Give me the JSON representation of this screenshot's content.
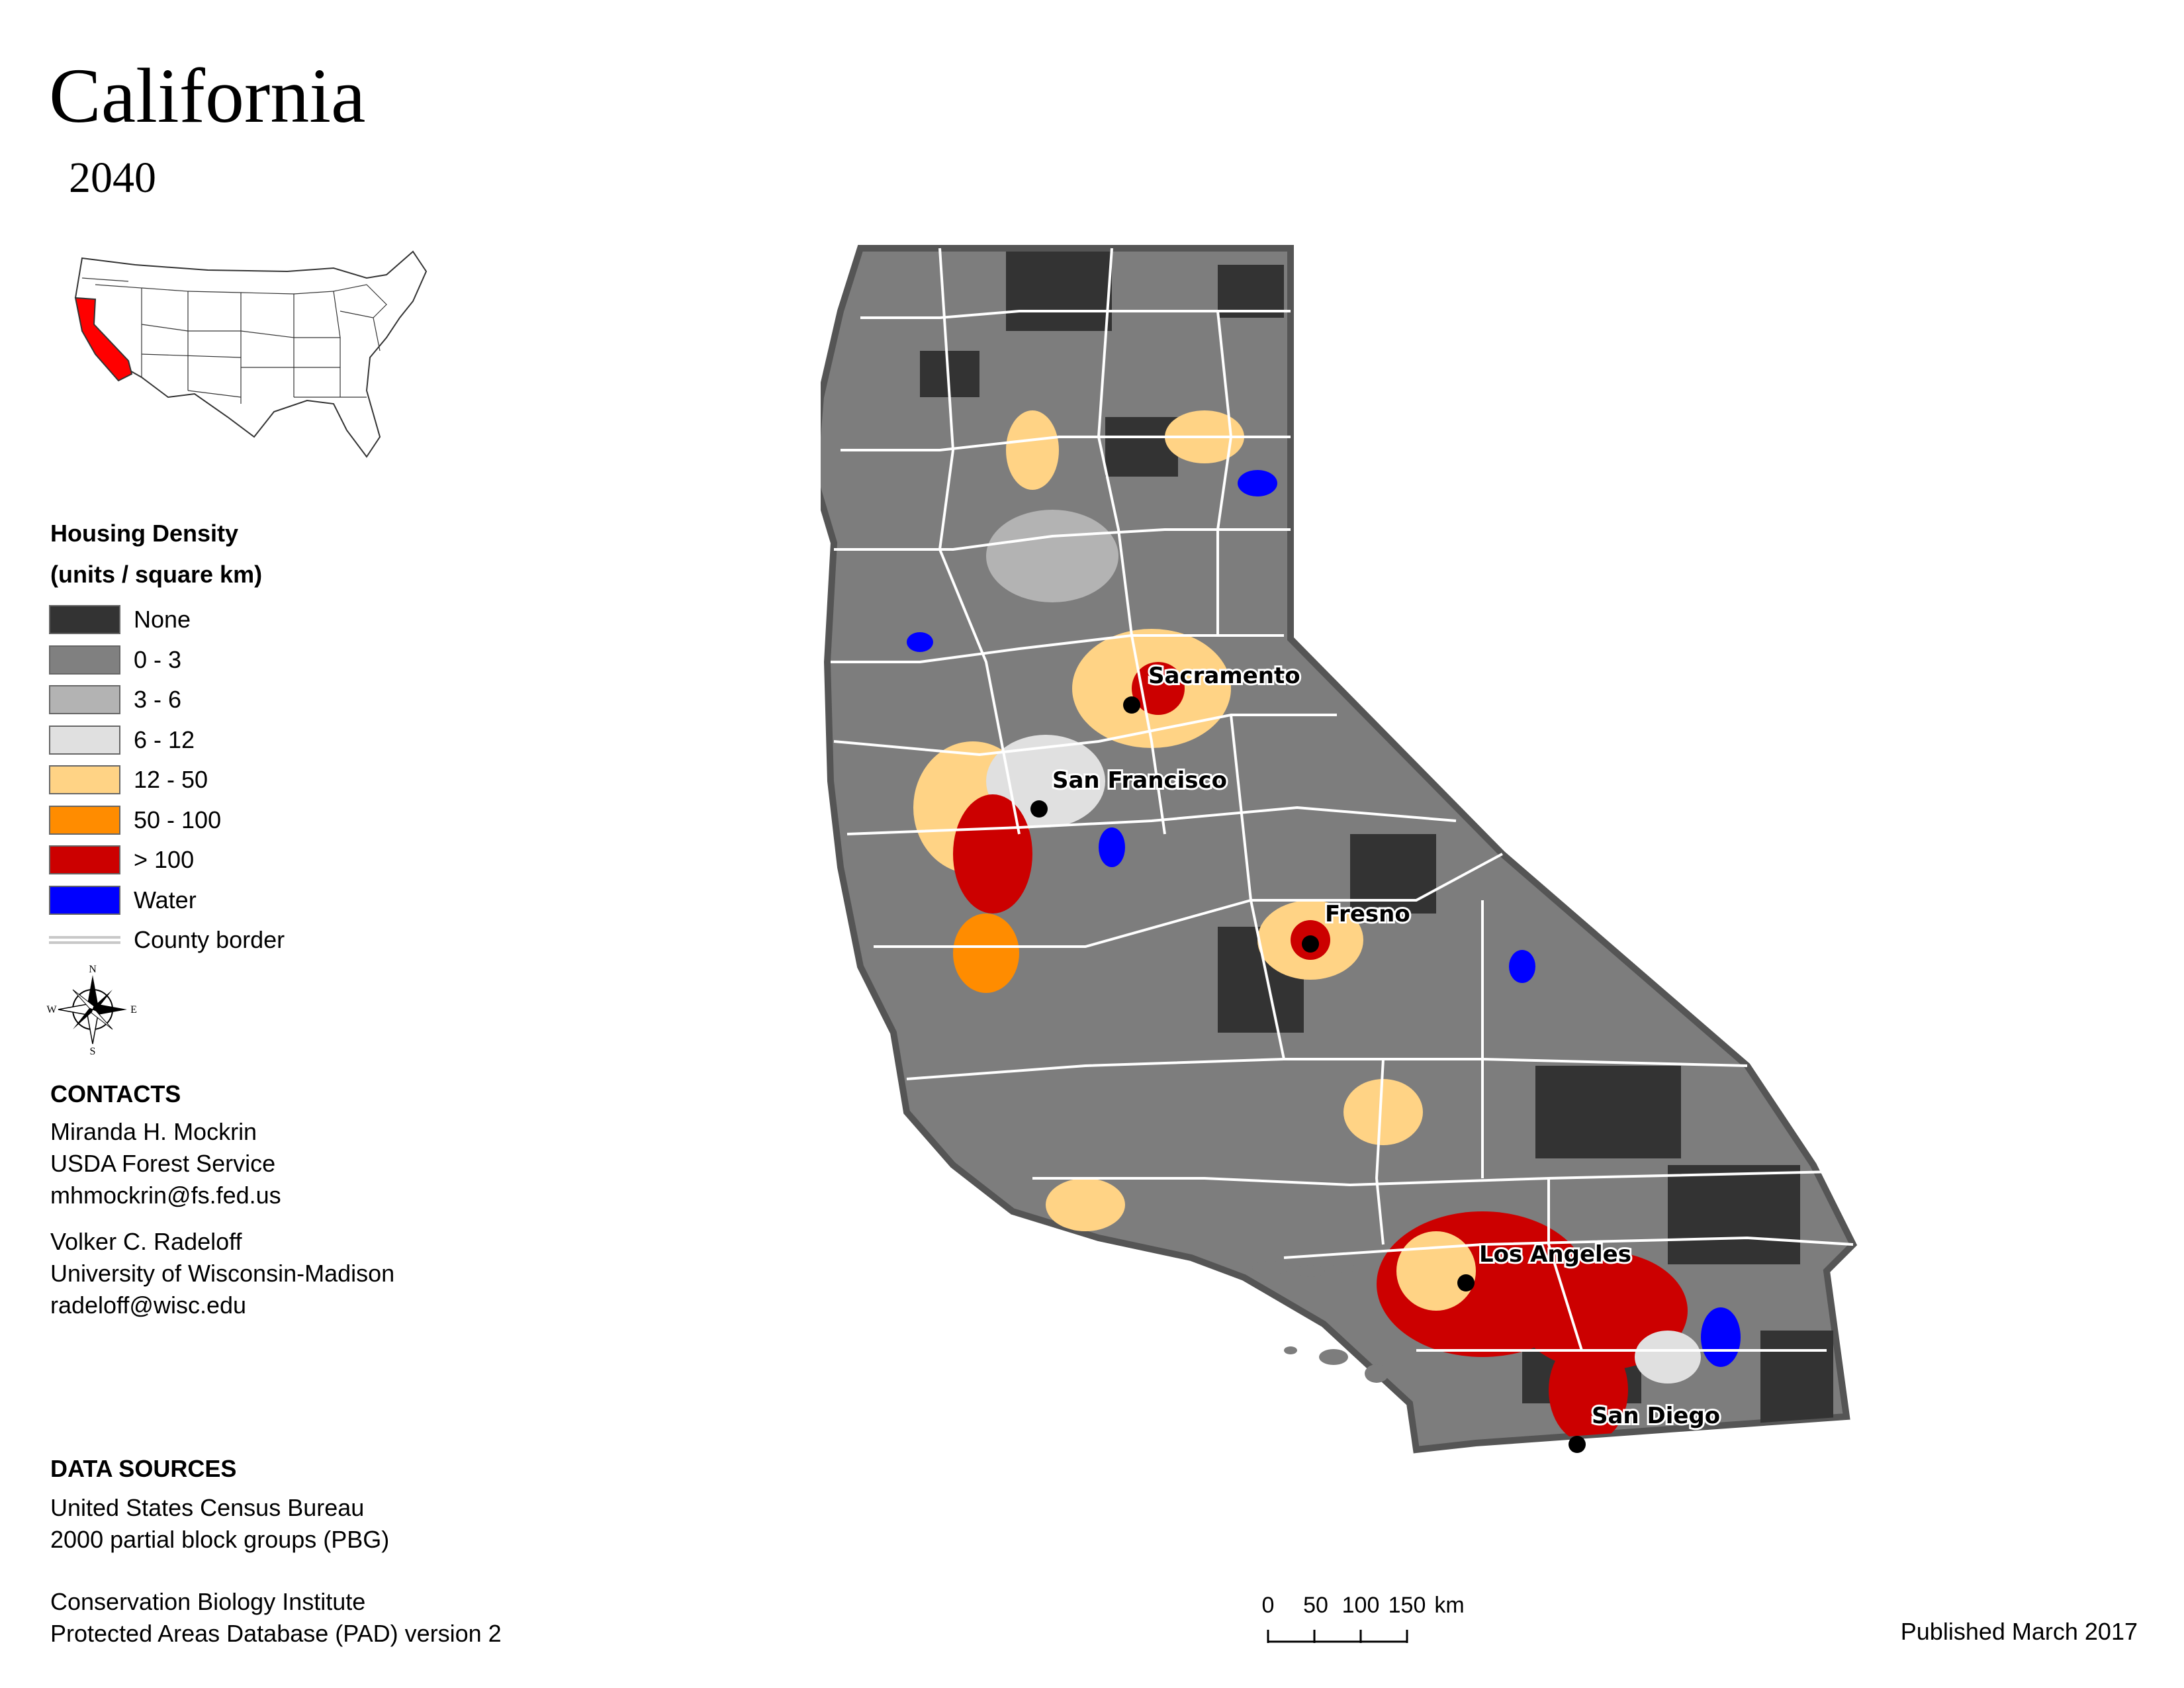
{
  "title": "California",
  "subtitle": "2040",
  "legend": {
    "title_line1": "Housing Density",
    "title_line2": "(units / square km)",
    "items": [
      {
        "label": "None",
        "color": "#333333"
      },
      {
        "label": "0 - 3",
        "color": "#808080"
      },
      {
        "label": "3 - 6",
        "color": "#b3b3b3"
      },
      {
        "label": "6 - 12",
        "color": "#e0e0e0"
      },
      {
        "label": "12 - 50",
        "color": "#ffd385"
      },
      {
        "label": "50 - 100",
        "color": "#ff8c00"
      },
      {
        "label": "> 100",
        "color": "#cc0000"
      },
      {
        "label": "Water",
        "color": "#0000ff"
      }
    ],
    "county_border_label": "County border"
  },
  "compass": {
    "n": "N",
    "s": "S",
    "e": "E",
    "w": "W"
  },
  "contacts": {
    "heading": "CONTACTS",
    "people": [
      {
        "name": "Miranda H. Mockrin",
        "org": "USDA Forest Service",
        "email": "mhmockrin@fs.fed.us"
      },
      {
        "name": "Volker C. Radeloff",
        "org": "University of Wisconsin-Madison",
        "email": "radeloff@wisc.edu"
      }
    ]
  },
  "data_sources": {
    "heading": "DATA SOURCES",
    "line1": "United States Census Bureau",
    "line2": "2000 partial block groups (PBG)",
    "line3": "Conservation Biology Institute",
    "line4": "Protected Areas Database (PAD) version 2"
  },
  "scale": {
    "ticks": [
      "0",
      "50",
      "100",
      "150"
    ],
    "unit": "km"
  },
  "published": "Published March 2017",
  "cities": [
    "Sacramento",
    "San Francisco",
    "Fresno",
    "Los Angeles",
    "San Diego"
  ],
  "highlight_color": "#ff0000"
}
